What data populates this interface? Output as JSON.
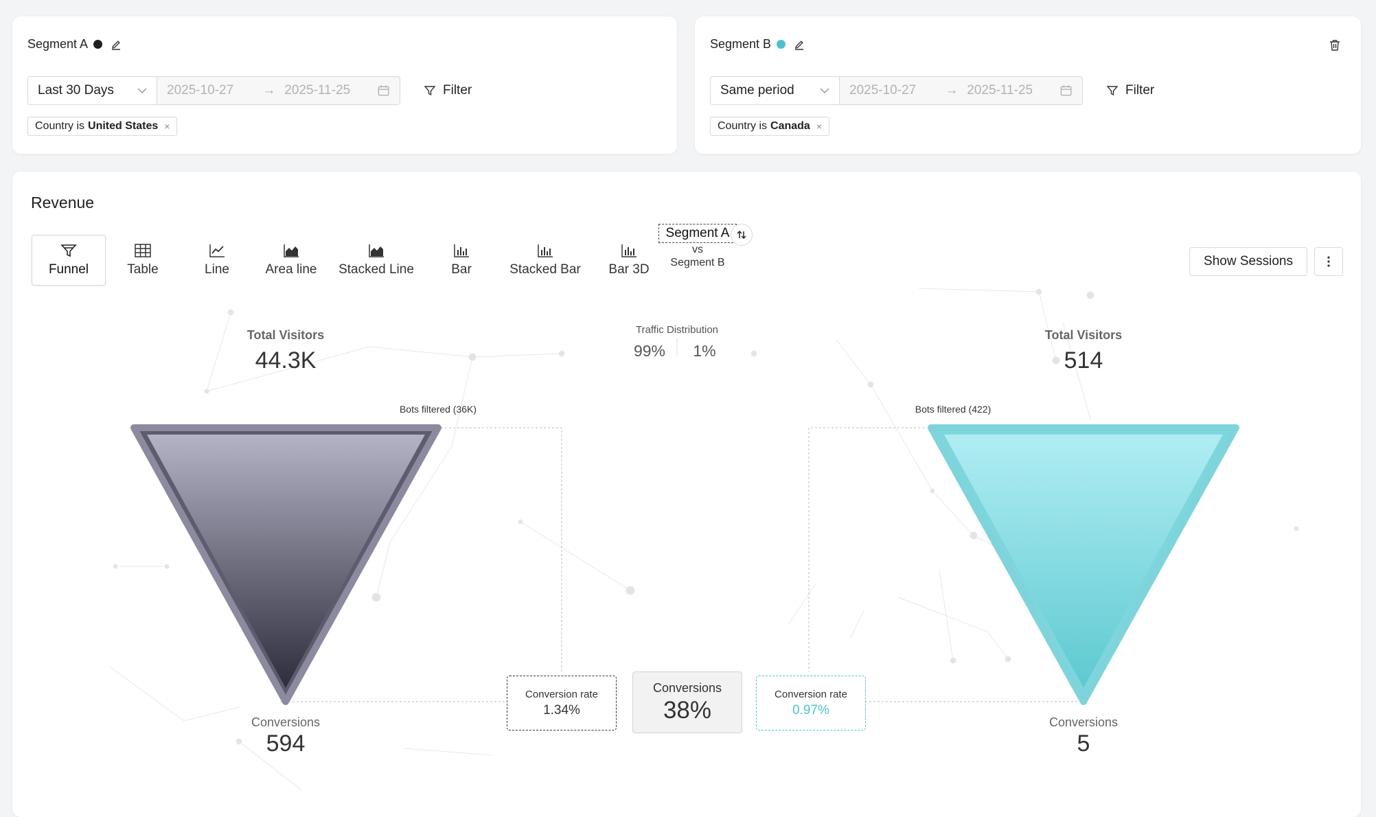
{
  "segment_a": {
    "title": "Segment A",
    "dot_color": "#1f1f1f",
    "range_select": "Last 30 Days",
    "date_start": "2025-10-27",
    "date_end": "2025-11-25",
    "filter_label": "Filter",
    "chip": {
      "prefix": "Country is",
      "value": "United States",
      "remove": "×"
    }
  },
  "segment_b": {
    "title": "Segment B",
    "dot_color": "#4cc3cc",
    "range_select": "Same period",
    "date_start": "2025-10-27",
    "date_end": "2025-11-25",
    "filter_label": "Filter",
    "chip": {
      "prefix": "Country is",
      "value": "Canada",
      "remove": "×"
    }
  },
  "main": {
    "title": "Revenue",
    "tabs": [
      {
        "label": "Funnel",
        "icon": "funnel-icon"
      },
      {
        "label": "Table",
        "icon": "table-icon"
      },
      {
        "label": "Line",
        "icon": "line-chart-icon"
      },
      {
        "label": "Area line",
        "icon": "area-chart-icon"
      },
      {
        "label": "Stacked Line",
        "icon": "stacked-line-icon"
      },
      {
        "label": "Bar",
        "icon": "bar-chart-icon"
      },
      {
        "label": "Stacked Bar",
        "icon": "stacked-bar-icon"
      },
      {
        "label": "Bar 3D",
        "icon": "bar-3d-icon"
      }
    ],
    "compare": {
      "primary": "Segment A",
      "vs": "vs",
      "secondary": "Segment B"
    },
    "show_sessions": "Show Sessions"
  },
  "funnel": {
    "left": {
      "visitors_label": "Total Visitors",
      "visitors_value": "44.3K",
      "bots_note": "Bots filtered (36K)",
      "conversions_label": "Conversions",
      "conversions_value": "594",
      "rate_label": "Conversion rate",
      "rate_value": "1.34%"
    },
    "right": {
      "visitors_label": "Total Visitors",
      "visitors_value": "514",
      "bots_note": "Bots filtered (422)",
      "conversions_label": "Conversions",
      "conversions_value": "5",
      "rate_label": "Conversion rate",
      "rate_value": "0.97%"
    },
    "traffic": {
      "label": "Traffic Distribution",
      "a": "99%",
      "b": "1%"
    },
    "center": {
      "label": "Conversions",
      "value": "38%"
    }
  }
}
